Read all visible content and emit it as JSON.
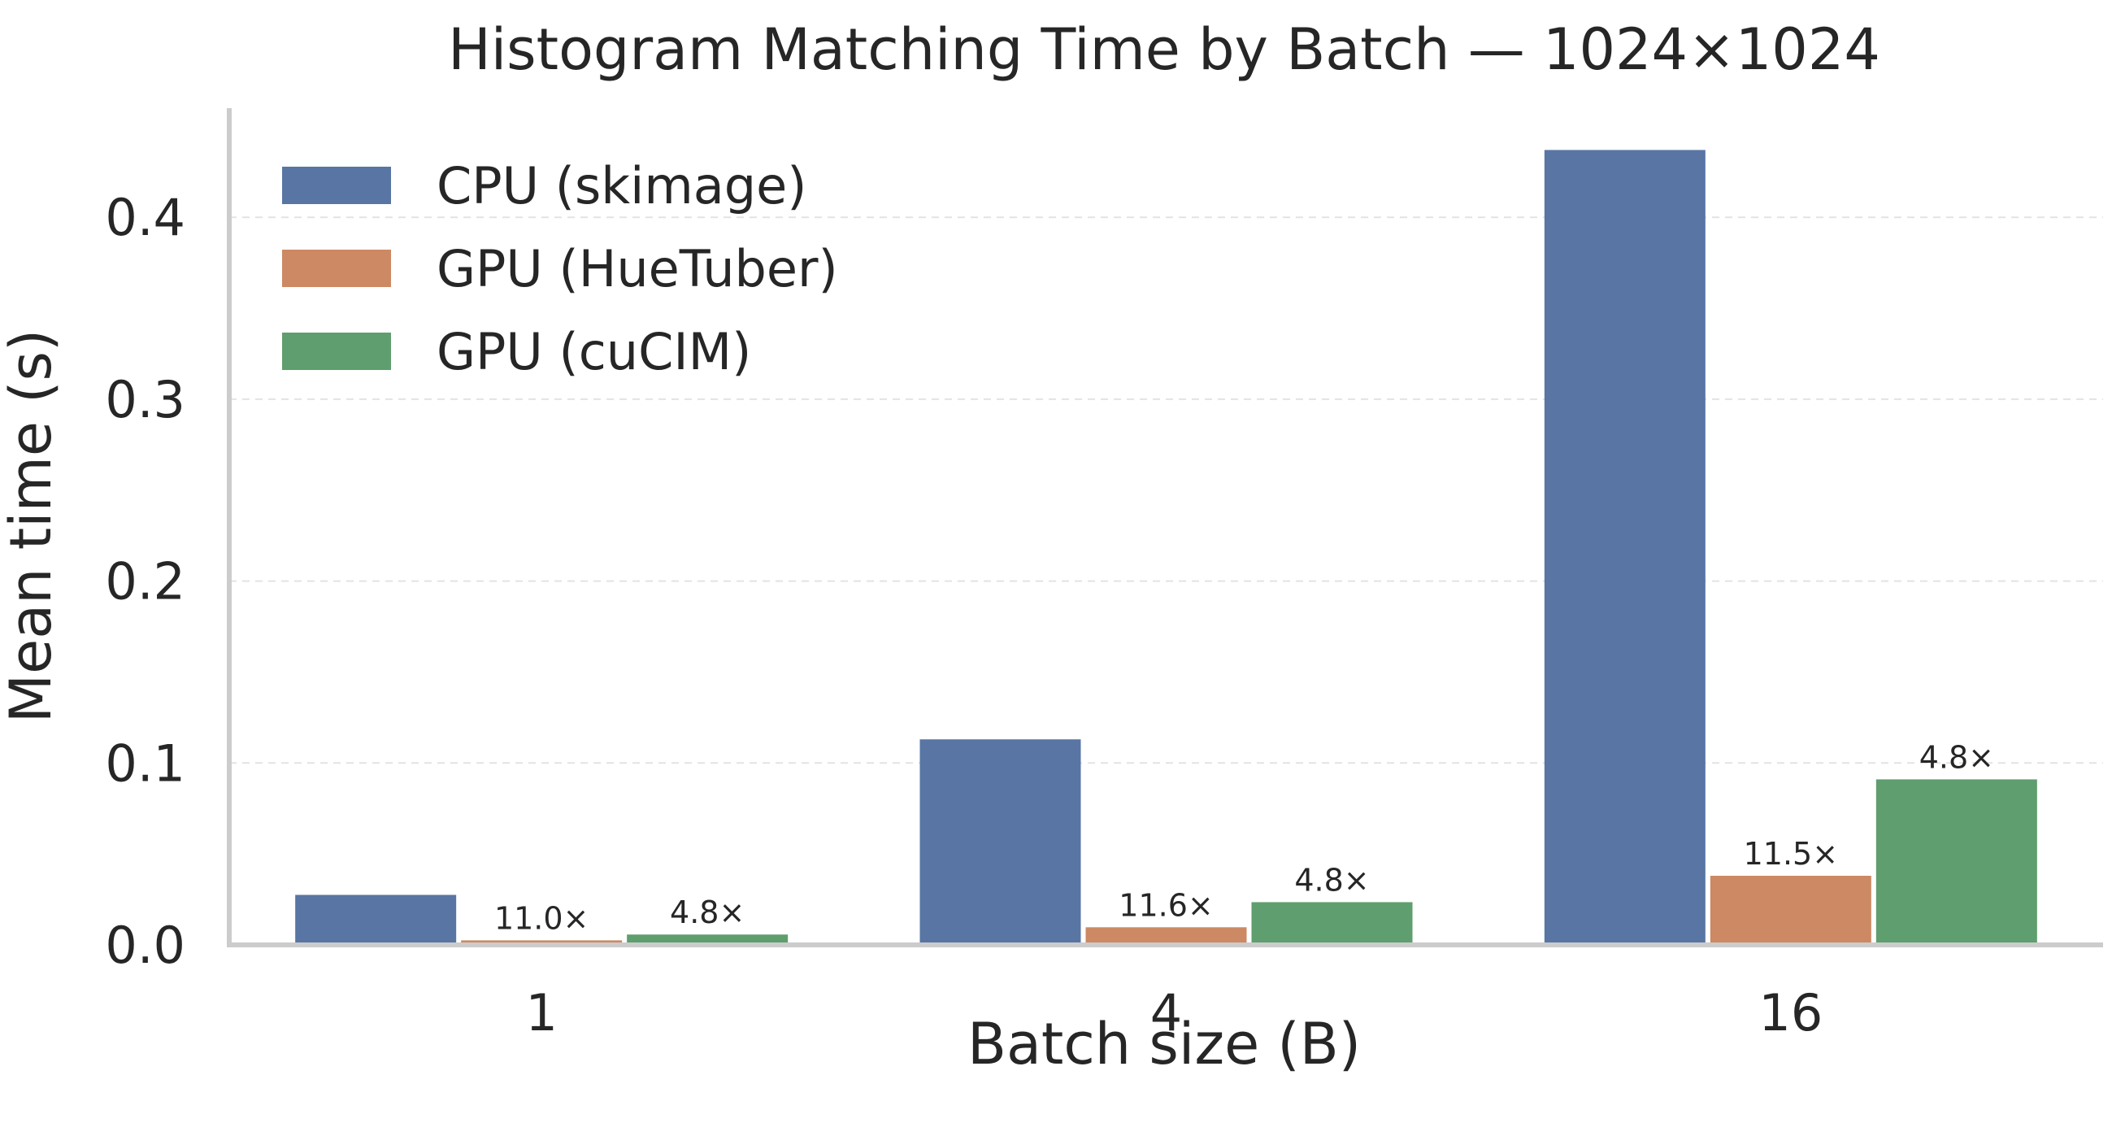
{
  "chart_data": {
    "type": "bar",
    "title": "Histogram Matching Time by Batch — 1024×1024",
    "xlabel": "Batch size (B)",
    "ylabel": "Mean time (s)",
    "categories": [
      "1",
      "4",
      "16"
    ],
    "ylim": [
      0,
      0.46
    ],
    "yticks": [
      0.0,
      0.1,
      0.2,
      0.3,
      0.4
    ],
    "ytick_labels": [
      "0.0",
      "0.1",
      "0.2",
      "0.3",
      "0.4"
    ],
    "grid": "horizontal dashed",
    "legend_position": "top-left",
    "series": [
      {
        "name": "CPU (skimage)",
        "color": "#5875a4",
        "values": [
          0.0275,
          0.113,
          0.437
        ],
        "labels": [
          "",
          "",
          ""
        ]
      },
      {
        "name": "GPU (HueTuber)",
        "color": "#cc8963",
        "values": [
          0.0025,
          0.0097,
          0.038
        ],
        "labels": [
          "11.0×",
          "11.6×",
          "11.5×"
        ]
      },
      {
        "name": "GPU (cuCIM)",
        "color": "#5f9e6e",
        "values": [
          0.0057,
          0.0235,
          0.091
        ],
        "labels": [
          "4.8×",
          "4.8×",
          "4.8×"
        ]
      }
    ]
  }
}
